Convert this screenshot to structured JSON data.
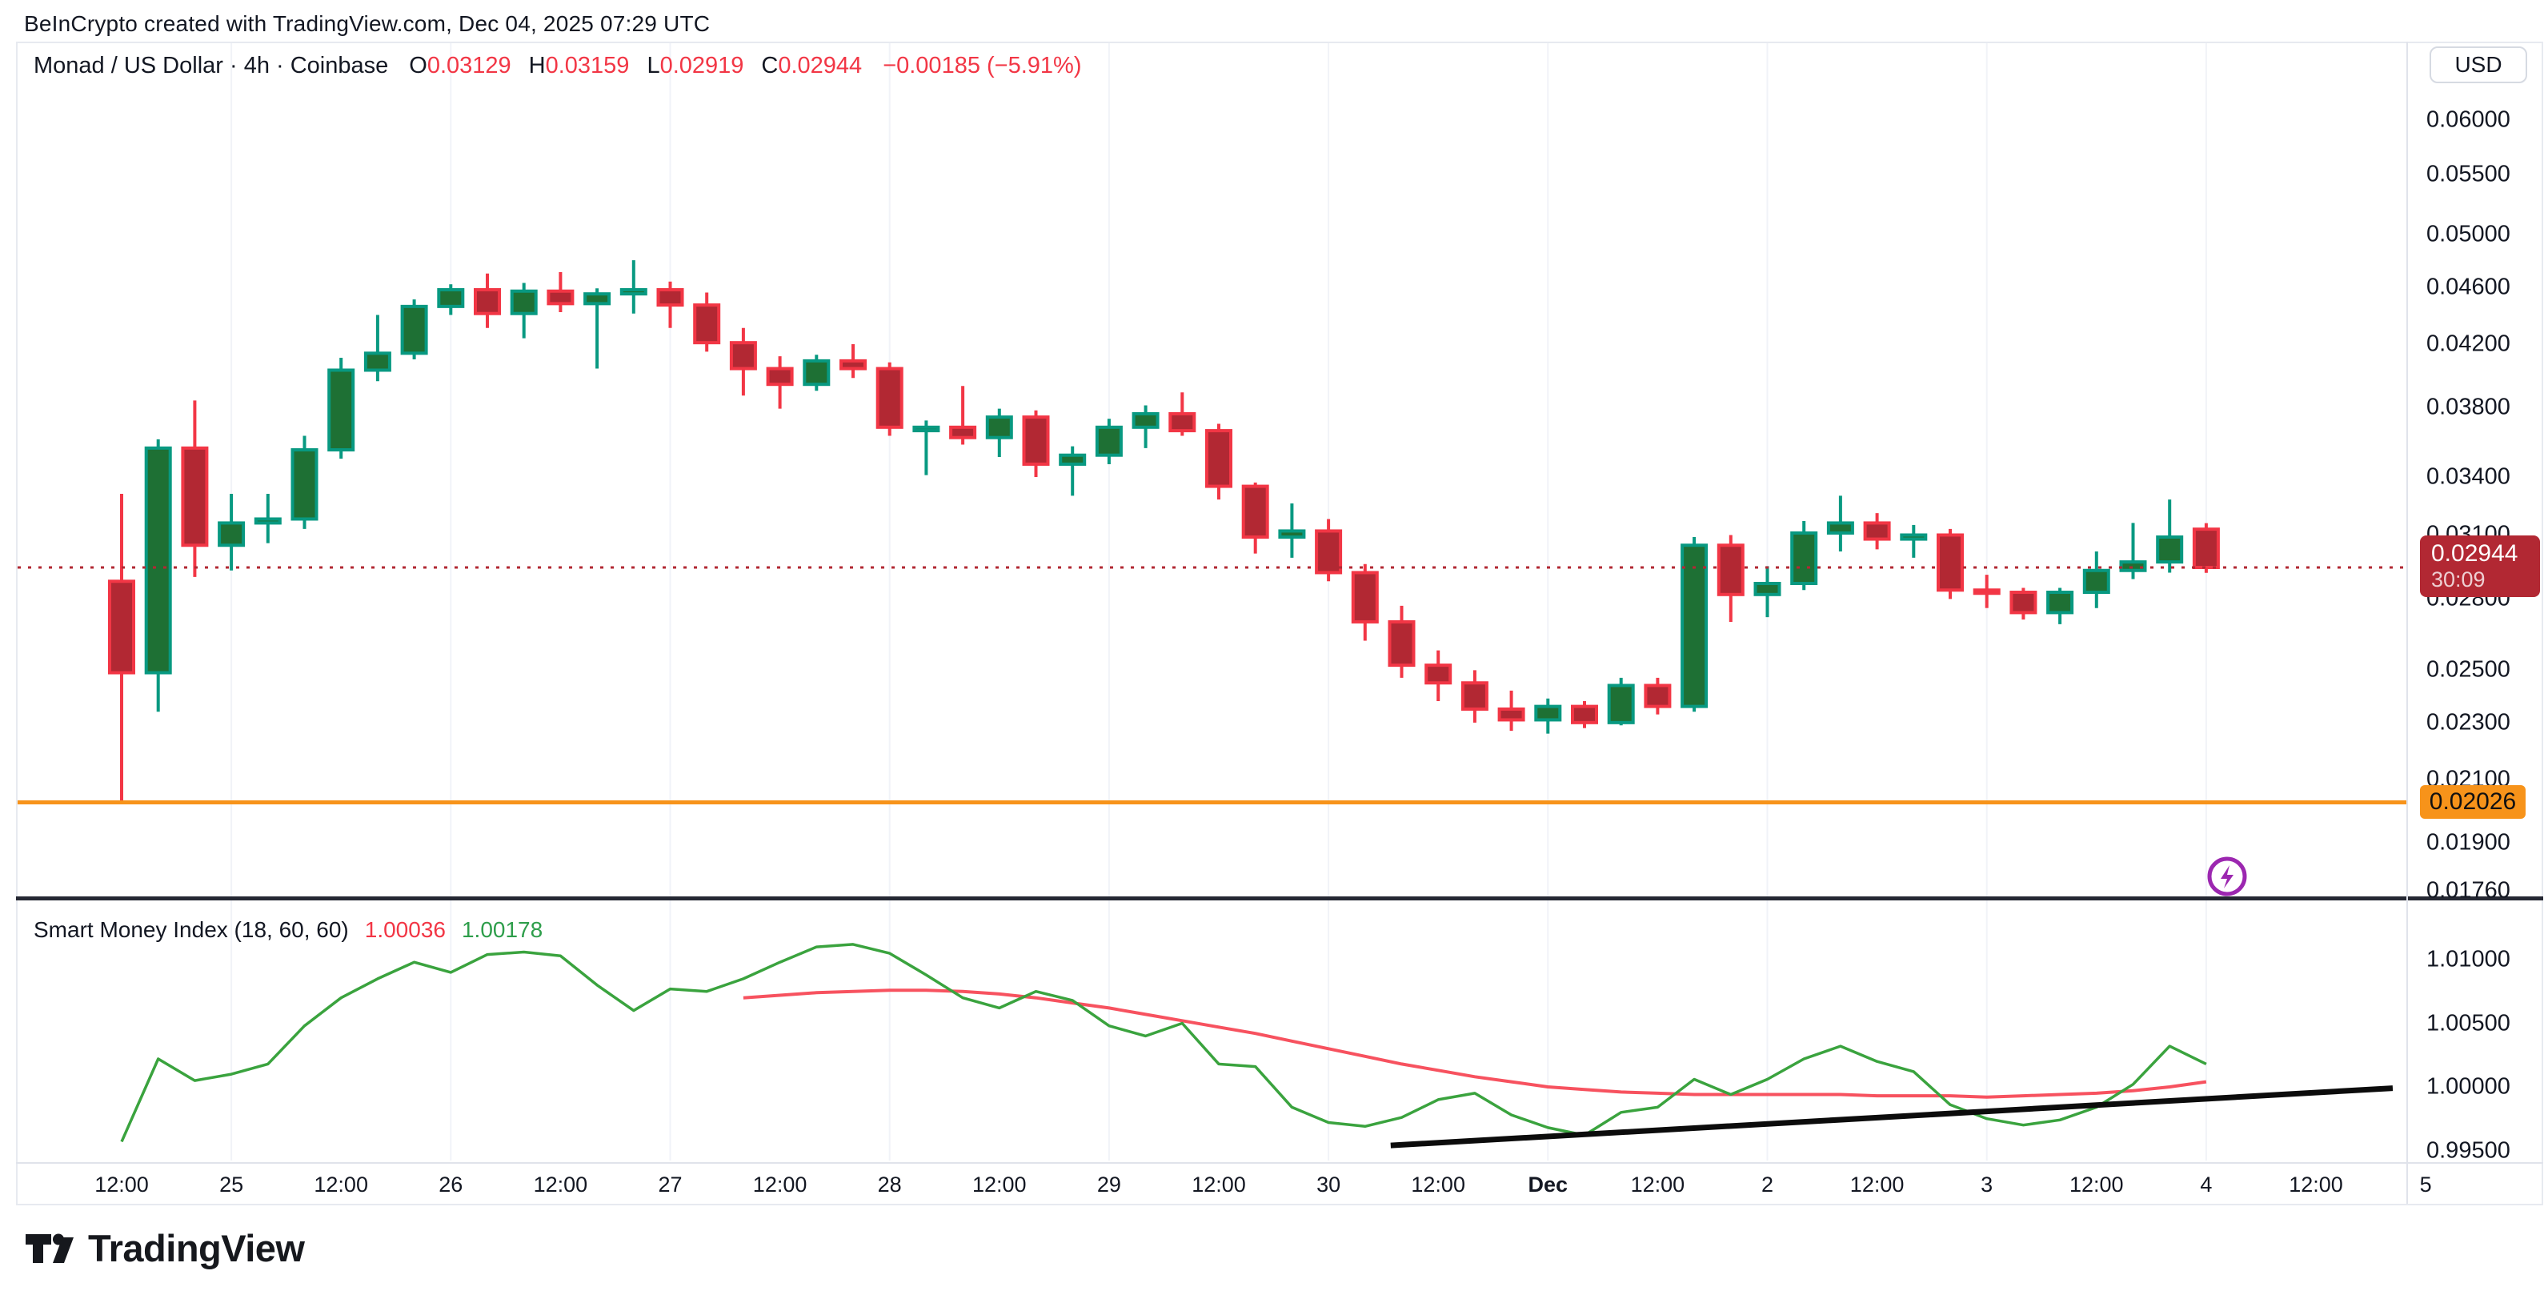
{
  "header": {
    "note": "BeInCrypto created with TradingView.com, Dec 04, 2025 07:29 UTC"
  },
  "symbol_line": {
    "name": "Monad / US Dollar",
    "interval": "4h",
    "exchange": "Coinbase",
    "full": "Monad / US Dollar · 4h · Coinbase",
    "o_label": "O",
    "o_value": "0.03129",
    "h_label": "H",
    "h_value": "0.03159",
    "l_label": "L",
    "l_value": "0.02919",
    "c_label": "C",
    "c_value": "0.02944",
    "change": "−0.00185 (−5.91%)"
  },
  "price_axis": {
    "currency_button": "USD",
    "last_price_label": {
      "price": "0.02944",
      "countdown": "30:09"
    },
    "alert_label": "0.02026"
  },
  "indicator_header": {
    "title": "Smart Money Index (18, 60, 60)",
    "red_value": "1.00036",
    "green_value": "1.00178"
  },
  "logo": {
    "text": "TradingView"
  },
  "colors": {
    "up_border": "#089981",
    "up_fill": "#1e7034",
    "down_border": "#f23645",
    "down_fill": "#b22833",
    "last_label_bg": "#b22833",
    "alert_orange": "#f7931a",
    "smi_green": "#3aa33e",
    "smi_red": "#f7525f",
    "trendline_black": "#0c0c0c",
    "badge_purple": "#9c27b0",
    "grid": "#f1f3f8",
    "axis_border": "#e0e3eb",
    "pane_separator": "#252833",
    "text_dark": "#131722",
    "ohlc_red": "#f23645"
  },
  "chart_data": {
    "type": "candlestick",
    "title": "Monad / US Dollar · 4h · Coinbase",
    "scale": "log",
    "current_price": 0.02944,
    "alert_price": 0.02026,
    "price_ticks": [
      {
        "label": "0.06000",
        "value": 0.06
      },
      {
        "label": "0.05500",
        "value": 0.055
      },
      {
        "label": "0.05000",
        "value": 0.05
      },
      {
        "label": "0.04600",
        "value": 0.046
      },
      {
        "label": "0.04200",
        "value": 0.042
      },
      {
        "label": "0.03800",
        "value": 0.038
      },
      {
        "label": "0.03400",
        "value": 0.034
      },
      {
        "label": "0.03100",
        "value": 0.031
      },
      {
        "label": "0.02800",
        "value": 0.028
      },
      {
        "label": "0.02500",
        "value": 0.025
      },
      {
        "label": "0.02300",
        "value": 0.023
      },
      {
        "label": "0.02100",
        "value": 0.021
      },
      {
        "label": "0.01900",
        "value": 0.019
      },
      {
        "label": "0.01760",
        "value": 0.0176
      }
    ],
    "time_ticks": [
      "12:00",
      "25",
      "12:00",
      "26",
      "12:00",
      "27",
      "12:00",
      "28",
      "12:00",
      "29",
      "12:00",
      "30",
      "12:00",
      "Dec",
      "12:00",
      "2",
      "12:00",
      "3",
      "12:00",
      "4",
      "12:00",
      "5"
    ],
    "candles_ohlc": [
      [
        0.0288,
        0.0331,
        0.0203,
        0.0249
      ],
      [
        0.0249,
        0.0361,
        0.0234,
        0.0356
      ],
      [
        0.0356,
        0.0384,
        0.029,
        0.0305
      ],
      [
        0.0305,
        0.0331,
        0.0293,
        0.0316
      ],
      [
        0.0316,
        0.0331,
        0.0306,
        0.0318
      ],
      [
        0.0318,
        0.0363,
        0.0313,
        0.0355
      ],
      [
        0.0355,
        0.0411,
        0.035,
        0.0403
      ],
      [
        0.0403,
        0.044,
        0.0396,
        0.0414
      ],
      [
        0.0414,
        0.0451,
        0.041,
        0.0446
      ],
      [
        0.0446,
        0.0462,
        0.044,
        0.0458
      ],
      [
        0.0458,
        0.047,
        0.0431,
        0.0441
      ],
      [
        0.0441,
        0.0463,
        0.0424,
        0.0457
      ],
      [
        0.0457,
        0.0471,
        0.0442,
        0.0448
      ],
      [
        0.0448,
        0.0459,
        0.0404,
        0.0455
      ],
      [
        0.0455,
        0.048,
        0.0441,
        0.0458
      ],
      [
        0.0458,
        0.0464,
        0.0431,
        0.0447
      ],
      [
        0.0447,
        0.0456,
        0.0415,
        0.0421
      ],
      [
        0.0421,
        0.0431,
        0.0387,
        0.0404
      ],
      [
        0.0404,
        0.0412,
        0.0379,
        0.0394
      ],
      [
        0.0394,
        0.0413,
        0.039,
        0.0409
      ],
      [
        0.0409,
        0.042,
        0.0398,
        0.0404
      ],
      [
        0.0404,
        0.0408,
        0.0363,
        0.0368
      ],
      [
        0.0366,
        0.0372,
        0.0341,
        0.0368
      ],
      [
        0.0368,
        0.0393,
        0.0358,
        0.0362
      ],
      [
        0.0362,
        0.0379,
        0.0351,
        0.0374
      ],
      [
        0.0374,
        0.0378,
        0.034,
        0.0347
      ],
      [
        0.0347,
        0.0357,
        0.033,
        0.0352
      ],
      [
        0.0352,
        0.0373,
        0.0347,
        0.0368
      ],
      [
        0.0368,
        0.0381,
        0.0356,
        0.0376
      ],
      [
        0.0376,
        0.0389,
        0.0363,
        0.0366
      ],
      [
        0.0366,
        0.037,
        0.0328,
        0.0335
      ],
      [
        0.0335,
        0.0337,
        0.0301,
        0.0309
      ],
      [
        0.0309,
        0.0326,
        0.0299,
        0.0312
      ],
      [
        0.0312,
        0.0318,
        0.0288,
        0.0292
      ],
      [
        0.0292,
        0.0296,
        0.0262,
        0.027
      ],
      [
        0.027,
        0.0277,
        0.0247,
        0.0252
      ],
      [
        0.0252,
        0.0258,
        0.0238,
        0.0245
      ],
      [
        0.0245,
        0.025,
        0.023,
        0.0235
      ],
      [
        0.0235,
        0.0242,
        0.0227,
        0.0231
      ],
      [
        0.0231,
        0.0239,
        0.0226,
        0.0236
      ],
      [
        0.0236,
        0.0238,
        0.0228,
        0.023
      ],
      [
        0.023,
        0.0247,
        0.0229,
        0.0244
      ],
      [
        0.0244,
        0.0247,
        0.0233,
        0.0236
      ],
      [
        0.0236,
        0.0309,
        0.0234,
        0.0305
      ],
      [
        0.0305,
        0.031,
        0.027,
        0.0282
      ],
      [
        0.0282,
        0.0295,
        0.0272,
        0.0287
      ],
      [
        0.0287,
        0.0317,
        0.0284,
        0.0311
      ],
      [
        0.0311,
        0.033,
        0.0302,
        0.0316
      ],
      [
        0.0316,
        0.0321,
        0.0303,
        0.0308
      ],
      [
        0.0308,
        0.0315,
        0.0299,
        0.031
      ],
      [
        0.031,
        0.0313,
        0.028,
        0.0284
      ],
      [
        0.0284,
        0.0291,
        0.0276,
        0.0283
      ],
      [
        0.0283,
        0.0285,
        0.0271,
        0.0274
      ],
      [
        0.0274,
        0.0285,
        0.0269,
        0.0283
      ],
      [
        0.0283,
        0.0302,
        0.0276,
        0.0293
      ],
      [
        0.0293,
        0.0316,
        0.0289,
        0.0297
      ],
      [
        0.0297,
        0.0328,
        0.0292,
        0.0309
      ],
      [
        0.03129,
        0.03159,
        0.02919,
        0.02944
      ]
    ],
    "indicator": {
      "name": "Smart Money Index",
      "params": [
        18,
        60,
        60
      ],
      "axis_ticks": [
        {
          "label": "1.01000",
          "value": 1.01
        },
        {
          "label": "1.00500",
          "value": 1.005
        },
        {
          "label": "1.00000",
          "value": 1.0
        },
        {
          "label": "0.99500",
          "value": 0.995
        }
      ],
      "smi_values": [
        0.9957,
        1.0022,
        1.0005,
        1.001,
        1.0018,
        1.0048,
        1.007,
        1.0085,
        1.0098,
        1.009,
        1.0104,
        1.0106,
        1.0103,
        1.008,
        1.006,
        1.0077,
        1.0075,
        1.0085,
        1.0098,
        1.011,
        1.0112,
        1.0105,
        1.0088,
        1.007,
        1.0062,
        1.0075,
        1.0068,
        1.0048,
        1.004,
        1.005,
        1.0018,
        1.0016,
        0.9984,
        0.9972,
        0.9969,
        0.9976,
        0.999,
        0.9995,
        0.9978,
        0.9968,
        0.9962,
        0.998,
        0.9984,
        1.0006,
        0.9994,
        1.0006,
        1.0022,
        1.0032,
        1.002,
        1.0012,
        0.9986,
        0.9975,
        0.997,
        0.9974,
        0.9984,
        1.0002,
        1.0032,
        1.0018
      ],
      "ma_start_index": 17,
      "ma_values": [
        1.007,
        1.0072,
        1.0074,
        1.0075,
        1.0076,
        1.0076,
        1.0075,
        1.0073,
        1.007,
        1.0066,
        1.0062,
        1.0057,
        1.0052,
        1.0047,
        1.0042,
        1.0036,
        1.003,
        1.0024,
        1.0018,
        1.0013,
        1.0008,
        1.0004,
        1.0,
        0.9998,
        0.9996,
        0.9995,
        0.9994,
        0.9994,
        0.9994,
        0.9994,
        0.9994,
        0.9993,
        0.9993,
        0.9993,
        0.9992,
        0.9993,
        0.9994,
        0.9995,
        0.9997,
        1.0,
        1.0004
      ],
      "trendline": {
        "start": {
          "index": 34.7,
          "value": 0.9954
        },
        "end": {
          "index": 62.1,
          "value": 0.9999
        }
      },
      "last_smi": 1.00178,
      "last_ma": 1.00036
    }
  }
}
